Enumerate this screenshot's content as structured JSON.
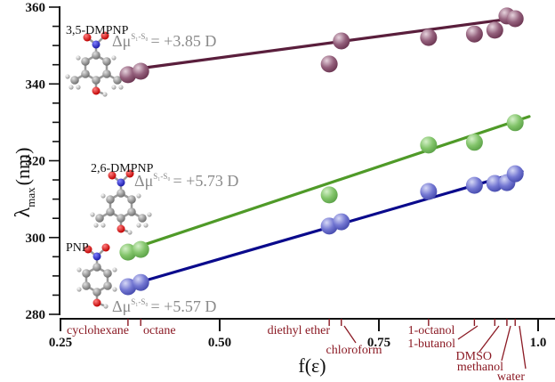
{
  "chart_data": {
    "type": "scatter",
    "title": "",
    "xlabel": "f(ε)",
    "ylabel": "λmax (nm)",
    "ylabel_main": "λ",
    "ylabel_sub": "max",
    "ylabel_unit": "(nm)",
    "xlim": [
      0.25,
      1.0
    ],
    "ylim": [
      280,
      360
    ],
    "x_ticks": [
      {
        "value": 0.25,
        "label": "0.25"
      },
      {
        "value": 0.5,
        "label": "0.50"
      },
      {
        "value": 0.75,
        "label": "0.75"
      },
      {
        "value": 1.0,
        "label": "1.0"
      }
    ],
    "y_ticks": [
      {
        "value": 280,
        "label": "280"
      },
      {
        "value": 300,
        "label": "300"
      },
      {
        "value": 320,
        "label": "320"
      },
      {
        "value": 340,
        "label": "340"
      },
      {
        "value": 360,
        "label": "360"
      }
    ],
    "y_minor_step": 5,
    "grid": false,
    "solvents": [
      {
        "name": "cyclohexane",
        "f": 0.356
      },
      {
        "name": "octane",
        "f": 0.376
      },
      {
        "name": "diethyl ether",
        "f": 0.672
      },
      {
        "name": "chloroform",
        "f": 0.691
      },
      {
        "name": "1-octanol",
        "f": 0.828
      },
      {
        "name": "1-butanol",
        "f": 0.9
      },
      {
        "name": "DMSO",
        "f": 0.932
      },
      {
        "name": "methanol",
        "f": 0.951
      },
      {
        "name": "water",
        "f": 0.964
      }
    ],
    "series": [
      {
        "name": "3,5-DMPNP",
        "dmu_prefix": "Δμ",
        "dmu_sup": "S₁-S₀",
        "dmu_value": "= +3.85 D",
        "color": "#5a1e3c",
        "marker_color": "#8c5a76",
        "points": [
          {
            "x": 0.356,
            "y": 342.4
          },
          {
            "x": 0.376,
            "y": 343.3
          },
          {
            "x": 0.672,
            "y": 345.2
          },
          {
            "x": 0.691,
            "y": 351.2
          },
          {
            "x": 0.828,
            "y": 352.1
          },
          {
            "x": 0.9,
            "y": 353.0
          },
          {
            "x": 0.932,
            "y": 354.0
          },
          {
            "x": 0.951,
            "y": 357.7
          },
          {
            "x": 0.964,
            "y": 357.0
          }
        ],
        "fit": {
          "x0": 0.382,
          "y0": 344.2,
          "x1": 0.958,
          "y1": 357.0
        }
      },
      {
        "name": "2,6-DMPNP",
        "dmu_prefix": "Δμ",
        "dmu_sup": "S₁-S₀",
        "dmu_value": "= +5.73 D",
        "color": "#4f9a28",
        "marker_color": "#7cc267",
        "points": [
          {
            "x": 0.356,
            "y": 296.2
          },
          {
            "x": 0.376,
            "y": 296.9
          },
          {
            "x": 0.672,
            "y": 311.1
          },
          {
            "x": 0.828,
            "y": 324.1
          },
          {
            "x": 0.9,
            "y": 324.8
          },
          {
            "x": 0.964,
            "y": 329.9
          }
        ],
        "fit": {
          "x0": 0.381,
          "y0": 298.1,
          "x1": 0.986,
          "y1": 331.5
        }
      },
      {
        "name": "PNP",
        "dmu_prefix": "Δμ",
        "dmu_sup": "S₁-S₀",
        "dmu_value": "= +5.57 D",
        "color": "#0a0a8c",
        "marker_color": "#6b6fd0",
        "points": [
          {
            "x": 0.356,
            "y": 287.2
          },
          {
            "x": 0.376,
            "y": 288.3
          },
          {
            "x": 0.672,
            "y": 303.0
          },
          {
            "x": 0.691,
            "y": 304.1
          },
          {
            "x": 0.828,
            "y": 312.0
          },
          {
            "x": 0.9,
            "y": 313.6
          },
          {
            "x": 0.932,
            "y": 314.1
          },
          {
            "x": 0.951,
            "y": 314.3
          },
          {
            "x": 0.964,
            "y": 316.6
          }
        ],
        "fit": {
          "x0": 0.381,
          "y0": 288.7,
          "x1": 0.975,
          "y1": 317.2
        }
      }
    ]
  }
}
